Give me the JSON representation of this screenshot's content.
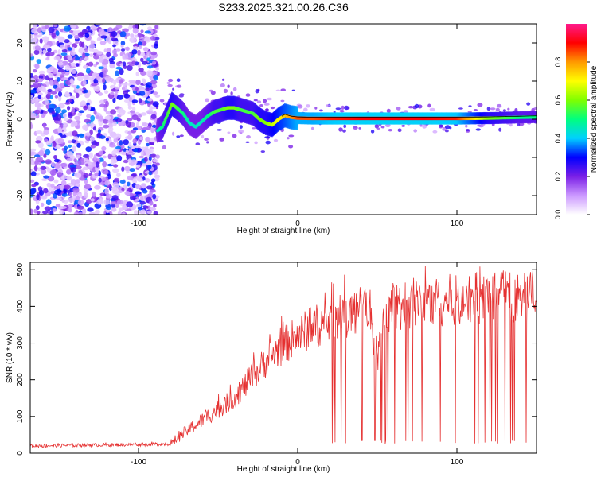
{
  "title": "S233.2025.321.00.26.C36",
  "chart_data": [
    {
      "type": "heatmap",
      "xlabel": "Height of straight line (km)",
      "ylabel": "Frequency (Hz)",
      "xlim": [
        -168,
        150
      ],
      "ylim": [
        -25,
        25
      ],
      "xticks": [
        -100,
        0,
        100
      ],
      "yticks": [
        -20,
        -10,
        0,
        10,
        20
      ],
      "colorbar": {
        "label": "Normalized spectral amplitude",
        "range": [
          0,
          1
        ],
        "ticks": [
          "0.0",
          "0.2",
          "0.4",
          "0.6",
          "0.8"
        ],
        "colors": [
          "#ffffff",
          "#cc99ff",
          "#7a1fe6",
          "#0000ff",
          "#00d0ff",
          "#00ff7f",
          "#7fff00",
          "#ffff00",
          "#ff9900",
          "#ff0000",
          "#ff1a8c"
        ]
      },
      "ridge": {
        "x": [
          -88,
          -85,
          -82,
          -79,
          -76,
          -72,
          -68,
          -64,
          -60,
          -56,
          -52,
          -48,
          -44,
          -40,
          -36,
          -32,
          -28,
          -24,
          -20,
          -16,
          -12,
          -8,
          -4,
          0,
          10,
          20,
          40,
          60,
          80,
          100,
          120,
          140,
          150
        ],
        "y": [
          -3,
          -2,
          1,
          4,
          3,
          1.5,
          -1,
          -2,
          -0.5,
          1,
          2,
          2.5,
          3,
          3,
          2.5,
          2,
          1.5,
          0,
          -1,
          -1.5,
          0,
          1,
          0.5,
          0.3,
          0.2,
          0.2,
          0.2,
          0.2,
          0.2,
          0.2,
          0.3,
          0.5,
          0.6
        ],
        "amp": [
          0.45,
          0.5,
          0.55,
          0.6,
          0.55,
          0.5,
          0.45,
          0.45,
          0.45,
          0.5,
          0.55,
          0.55,
          0.6,
          0.6,
          0.55,
          0.55,
          0.55,
          0.6,
          0.6,
          0.65,
          0.7,
          0.75,
          0.8,
          0.85,
          0.85,
          0.88,
          0.9,
          0.9,
          0.9,
          0.88,
          0.6,
          0.5,
          0.5
        ]
      },
      "noise_region_x": [
        -168,
        -88
      ]
    },
    {
      "type": "line",
      "xlabel": "Height of straight line (km)",
      "ylabel": "SNR (10 * v/v)",
      "xlim": [
        -168,
        150
      ],
      "ylim": [
        0,
        520
      ],
      "xticks": [
        -100,
        0,
        100
      ],
      "yticks": [
        0,
        100,
        200,
        300,
        400,
        500
      ],
      "color": "#e53030",
      "trend": {
        "x": [
          -168,
          -80,
          -70,
          -60,
          -50,
          -40,
          -30,
          -20,
          -10,
          0,
          10,
          20,
          30,
          40,
          45,
          50,
          55,
          60,
          80,
          100,
          120,
          150
        ],
        "y": [
          20,
          25,
          60,
          90,
          120,
          150,
          200,
          250,
          290,
          320,
          345,
          360,
          375,
          390,
          380,
          260,
          360,
          400,
          410,
          420,
          425,
          430
        ]
      },
      "dropout_region_x": [
        20,
        150
      ],
      "dropout_level": 25
    }
  ]
}
